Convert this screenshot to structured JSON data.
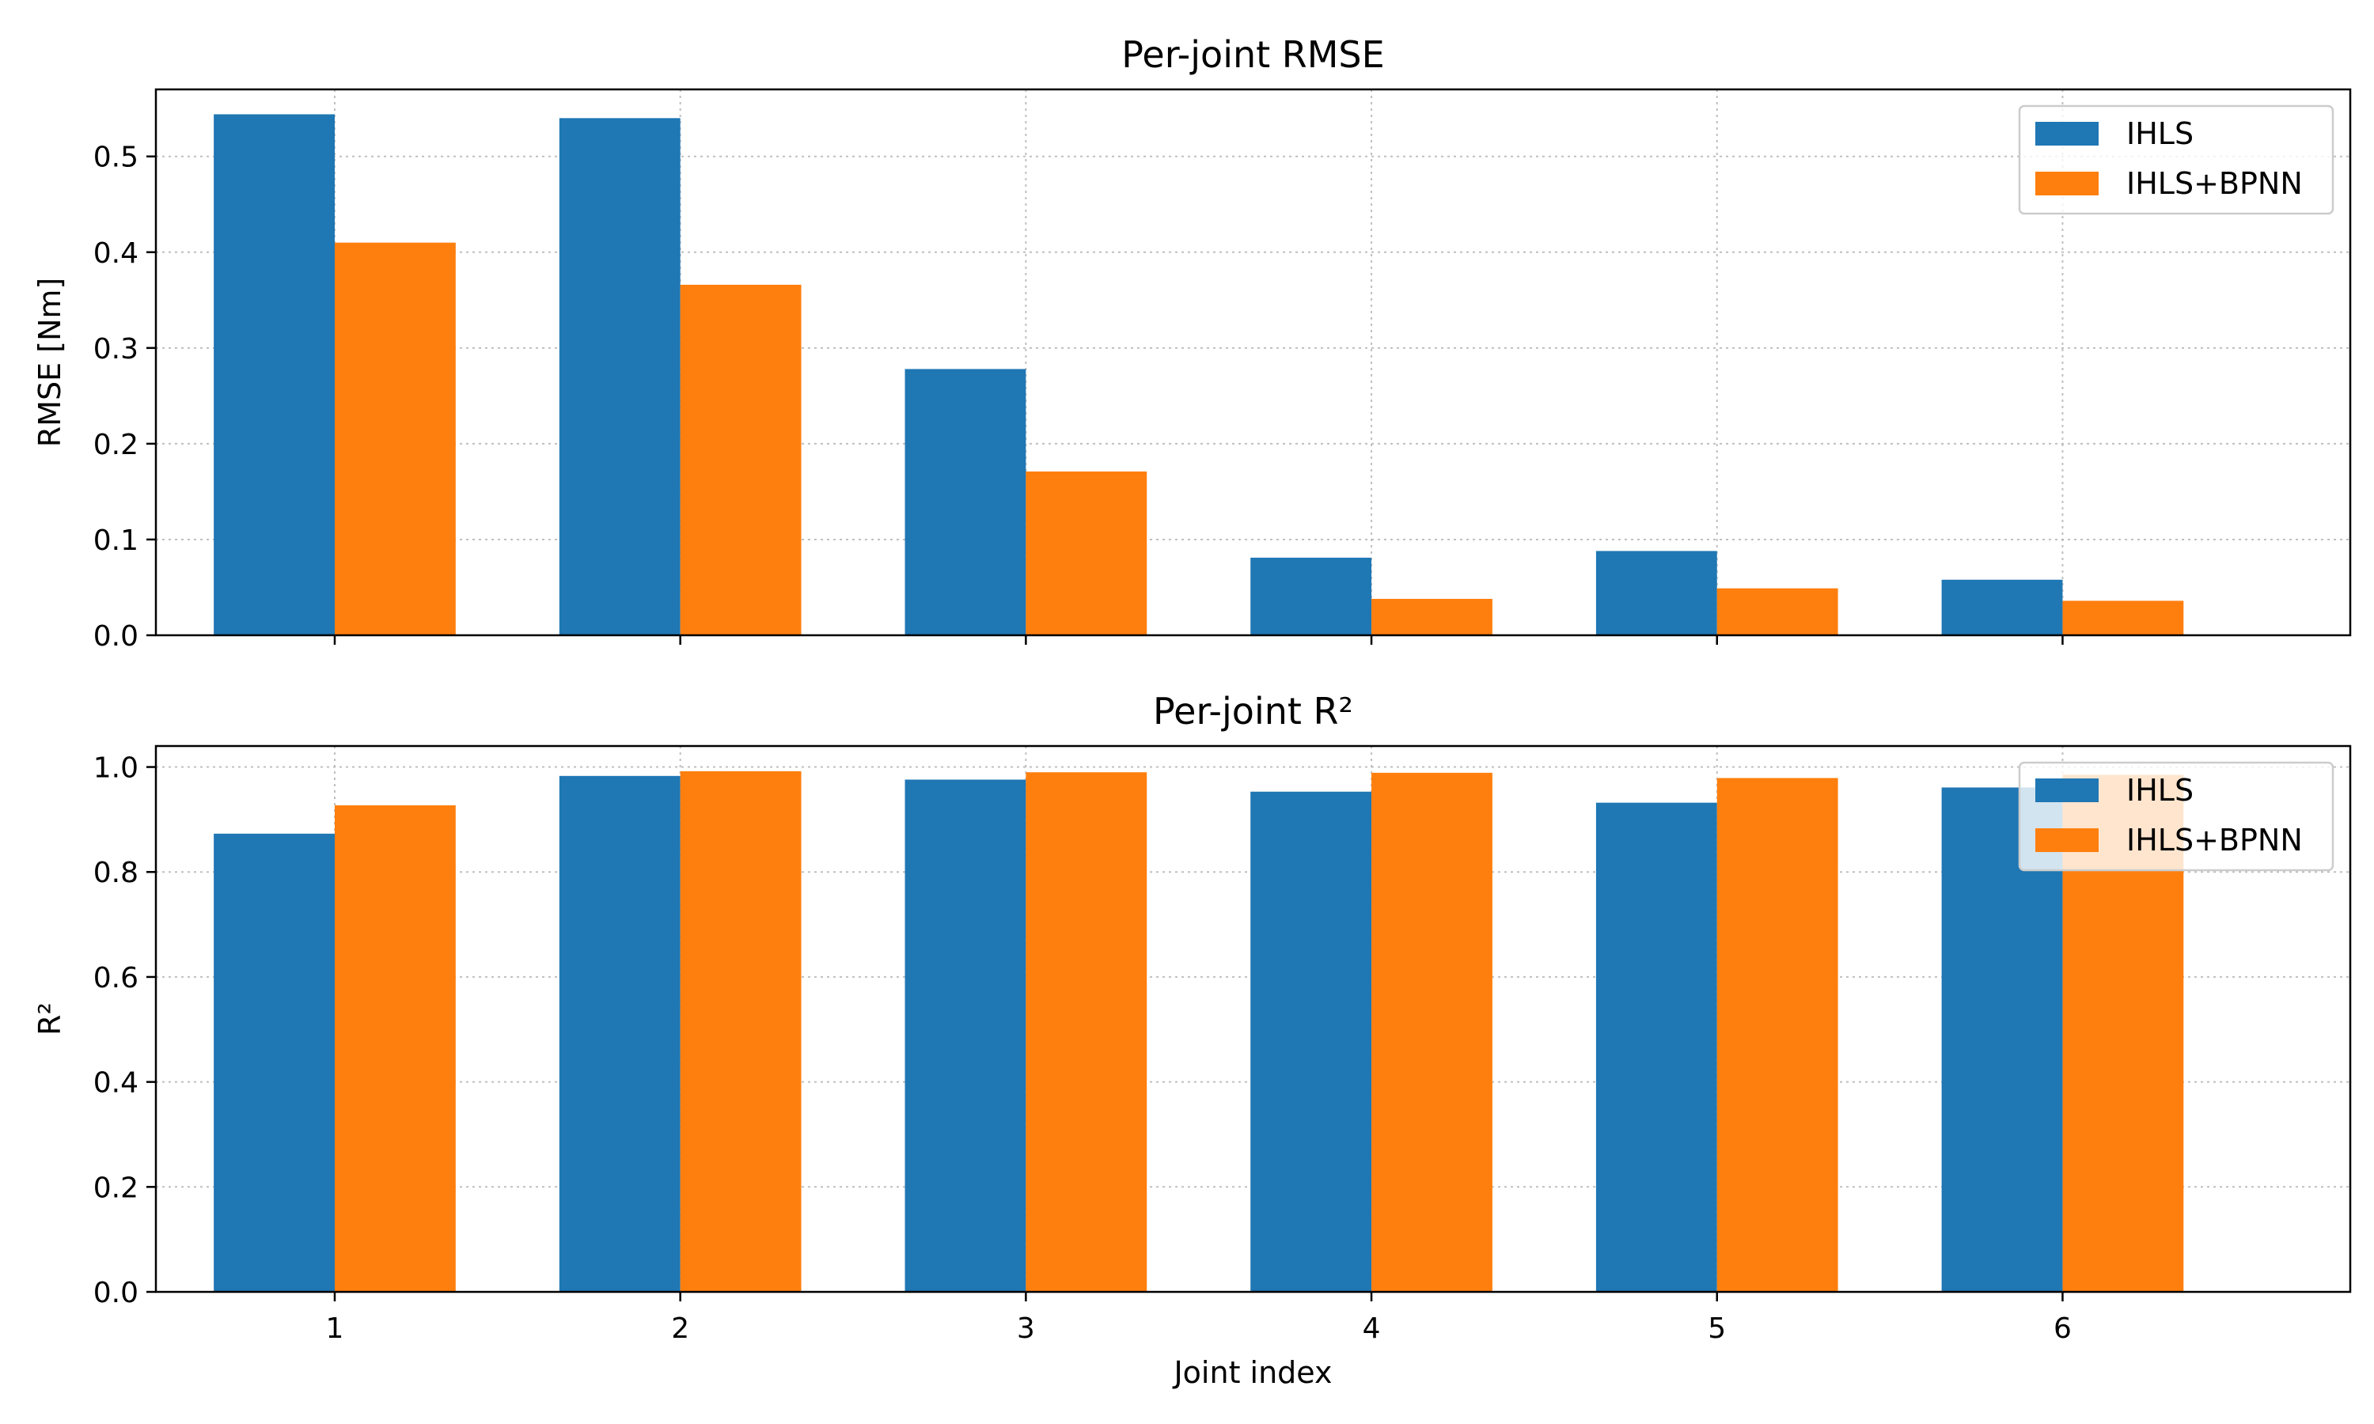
{
  "colors": {
    "series": [
      "#1f77b4",
      "#ff7f0e"
    ],
    "grid": "#b0b0b0",
    "axis": "#000000",
    "legend_border": "#cccccc"
  },
  "chart_data": [
    {
      "type": "bar",
      "title": "Per-joint RMSE",
      "xlabel": "",
      "ylabel": "RMSE [Nm]",
      "categories": [
        "1",
        "2",
        "3",
        "4",
        "5",
        "6"
      ],
      "series": [
        {
          "name": "IHLS",
          "values": [
            0.544,
            0.54,
            0.278,
            0.081,
            0.088,
            0.058
          ]
        },
        {
          "name": "IHLS+BPNN",
          "values": [
            0.41,
            0.366,
            0.171,
            0.038,
            0.049,
            0.036
          ]
        }
      ],
      "ylim": [
        0,
        0.57
      ],
      "yticks": [
        0.0,
        0.1,
        0.2,
        0.3,
        0.4,
        0.5
      ],
      "ytick_labels": [
        "0.0",
        "0.1",
        "0.2",
        "0.3",
        "0.4",
        "0.5"
      ],
      "show_xtick_labels": false,
      "grid": true,
      "legend": "top-right"
    },
    {
      "type": "bar",
      "title": "Per-joint R²",
      "xlabel": "Joint index",
      "ylabel": "R²",
      "categories": [
        "1",
        "2",
        "3",
        "4",
        "5",
        "6"
      ],
      "series": [
        {
          "name": "IHLS",
          "values": [
            0.873,
            0.983,
            0.976,
            0.953,
            0.932,
            0.961
          ]
        },
        {
          "name": "IHLS+BPNN",
          "values": [
            0.927,
            0.992,
            0.99,
            0.989,
            0.979,
            0.985
          ]
        }
      ],
      "ylim": [
        0,
        1.04
      ],
      "yticks": [
        0.0,
        0.2,
        0.4,
        0.6,
        0.8,
        1.0
      ],
      "ytick_labels": [
        "0.0",
        "0.2",
        "0.4",
        "0.6",
        "0.8",
        "1.0"
      ],
      "show_xtick_labels": true,
      "grid": true,
      "legend": "top-right"
    }
  ]
}
